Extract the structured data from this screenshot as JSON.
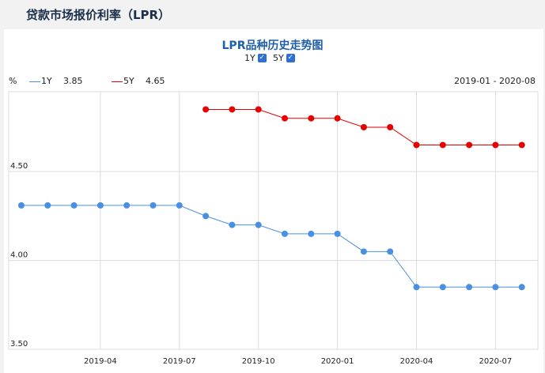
{
  "page": {
    "title": "贷款市场报价利率（LPR）"
  },
  "colors": {
    "series_1y": "#4a90e2",
    "series_5y": "#e60000",
    "grid": "#dcdcdc"
  },
  "chart_data": {
    "type": "line",
    "title": "LPR品种历史走势图",
    "ylabel": "%",
    "date_range": "2019-01 - 2020-08",
    "ylim": [
      3.5,
      4.95
    ],
    "y_ticks": [
      "4.50",
      "4.00",
      "3.50"
    ],
    "x_ticks": [
      "2019-04",
      "2019-07",
      "2019-10",
      "2020-01",
      "2020-04",
      "2020-07"
    ],
    "x": [
      "2019-01",
      "2019-02",
      "2019-03",
      "2019-04",
      "2019-05",
      "2019-06",
      "2019-07",
      "2019-08",
      "2019-09",
      "2019-10",
      "2019-11",
      "2019-12",
      "2020-01",
      "2020-02",
      "2020-03",
      "2020-04",
      "2020-05",
      "2020-06",
      "2020-07",
      "2020-08"
    ],
    "series": [
      {
        "name": "1Y",
        "checkbox_label": "1Y",
        "legend_value": "3.85",
        "values": [
          4.31,
          4.31,
          4.31,
          4.31,
          4.31,
          4.31,
          4.31,
          4.25,
          4.2,
          4.2,
          4.15,
          4.15,
          4.15,
          4.05,
          4.05,
          3.85,
          3.85,
          3.85,
          3.85,
          3.85
        ]
      },
      {
        "name": "5Y",
        "checkbox_label": "5Y",
        "legend_value": "4.65",
        "values": [
          null,
          null,
          null,
          null,
          null,
          null,
          null,
          4.85,
          4.85,
          4.85,
          4.8,
          4.8,
          4.8,
          4.75,
          4.75,
          4.65,
          4.65,
          4.65,
          4.65,
          4.65
        ]
      }
    ]
  }
}
